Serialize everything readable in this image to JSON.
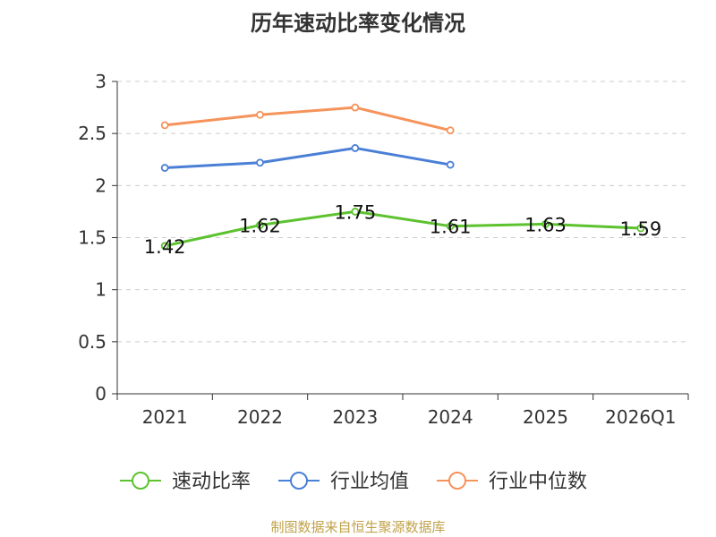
{
  "chart_data": {
    "type": "line",
    "title": "历年速动比率变化情况",
    "categories": [
      "2021",
      "2022",
      "2023",
      "2024",
      "2025",
      "2026Q1"
    ],
    "ylim": [
      0,
      3
    ],
    "yticks": [
      "0",
      "0.5",
      "1",
      "1.5",
      "2",
      "2.5",
      "3"
    ],
    "grid": true,
    "legend": "bottom",
    "series": [
      {
        "name": "速动比率",
        "color": "#5cc22e",
        "values": [
          1.42,
          1.62,
          1.75,
          1.61,
          1.63,
          1.59
        ],
        "labels": [
          "1.42",
          "1.62",
          "1.75",
          "1.61",
          "1.63",
          "1.59"
        ]
      },
      {
        "name": "行业均值",
        "color": "#4a7fd6",
        "values": [
          2.17,
          2.22,
          2.36,
          2.2,
          null,
          null
        ]
      },
      {
        "name": "行业中位数",
        "color": "#f5935a",
        "values": [
          2.58,
          2.68,
          2.75,
          2.53,
          null,
          null
        ]
      }
    ],
    "source": "制图数据来自恒生聚源数据库"
  }
}
